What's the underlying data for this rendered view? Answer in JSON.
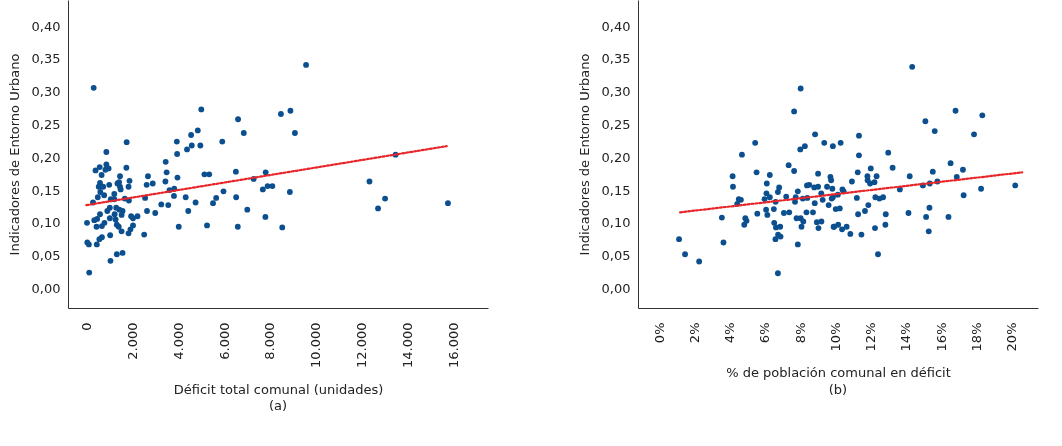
{
  "chart_data": [
    {
      "type": "scatter",
      "xlabel": "Déficit total comunal (unidades)",
      "ylabel": "Indicadores de Entorno Urbano",
      "annotations": [
        "(a)"
      ],
      "xlim": [
        -800,
        17500
      ],
      "ylim": [
        -0.03,
        0.44
      ],
      "xticks": [
        0,
        {
          "value": 2000,
          "label": "2.000"
        },
        {
          "value": 4000,
          "label": "4.000"
        },
        {
          "value": 6000,
          "label": "6.000"
        },
        {
          "value": 8000,
          "label": "8.000"
        },
        {
          "value": 10000,
          "label": "10.000"
        },
        {
          "value": 12000,
          "label": "12.000"
        },
        {
          "value": 14000,
          "label": "14.000"
        },
        {
          "value": 16000,
          "label": "16.000"
        }
      ],
      "yticks": [
        {
          "value": 0,
          "label": "0,00"
        },
        {
          "value": 0.05,
          "label": "0,05"
        },
        {
          "value": 0.1,
          "label": "0,10"
        },
        {
          "value": 0.15,
          "label": "0,15"
        },
        {
          "value": 0.2,
          "label": "0,20"
        },
        {
          "value": 0.25,
          "label": "0,25"
        },
        {
          "value": 0.3,
          "label": "0,30"
        },
        {
          "value": 0.35,
          "label": "0,35"
        },
        {
          "value": 0.4,
          "label": "0,40"
        }
      ],
      "grid": false,
      "series": [
        {
          "type": "scatter",
          "marker": "circle",
          "color": "#0b4f8f",
          "x": [
            319,
            5008,
            1756,
            871,
            3942,
            4564,
            4855,
            5921,
            4386,
            4593,
            4966,
            3955,
            3457,
            3498,
            3970,
            5145,
            5353,
            5975,
            5656,
            5519,
            4759,
            4329,
            3830,
            3623,
            3817,
            3568,
            3264,
            4440,
            4025,
            5257,
            3444,
            2684,
            2891,
            2627,
            2560,
            2643,
            3000,
            2519,
            1743,
            1881,
            1838,
            1853,
            1674,
            1466,
            1425,
            1355,
            1466,
            1494,
            1217,
            996,
            871,
            968,
            830,
            581,
            401,
            664,
            595,
            539,
            733,
            775,
            608,
            498,
            290,
            1065,
            1217,
            1023,
            1300,
            913,
            1438,
            1577,
            1535,
            1231,
            1023,
            595,
            470,
            346,
            29,
            788,
            678,
            443,
            1273,
            1328,
            1411,
            1535,
            1950,
            2033,
            2228,
            2033,
            1922,
            1838,
            1037,
            678,
            567,
            456,
            41,
            110,
            1328,
            1577,
            1051,
            124,
            9573,
            8477,
            8892,
            6610,
            6859,
            9087,
            6515,
            7813,
            7290,
            7689,
            7896,
            8104,
            8867,
            6527,
            7012,
            7801,
            6598,
            8535,
            12336,
            13473,
            13016,
            12710,
            15755
          ],
          "values": [
            0.306,
            0.273,
            0.223,
            0.208,
            0.224,
            0.234,
            0.241,
            0.224,
            0.212,
            0.218,
            0.218,
            0.205,
            0.193,
            0.177,
            0.169,
            0.174,
            0.174,
            0.148,
            0.138,
            0.13,
            0.131,
            0.139,
            0.152,
            0.15,
            0.141,
            0.127,
            0.128,
            0.118,
            0.094,
            0.096,
            0.163,
            0.171,
            0.16,
            0.158,
            0.138,
            0.118,
            0.115,
            0.082,
            0.184,
            0.164,
            0.155,
            0.134,
            0.137,
            0.171,
            0.162,
            0.16,
            0.155,
            0.151,
            0.144,
            0.158,
            0.189,
            0.183,
            0.181,
            0.185,
            0.18,
            0.173,
            0.161,
            0.155,
            0.155,
            0.142,
            0.147,
            0.139,
            0.131,
            0.136,
            0.136,
            0.123,
            0.123,
            0.118,
            0.12,
            0.118,
            0.112,
            0.113,
            0.107,
            0.113,
            0.106,
            0.104,
            0.1,
            0.1,
            0.095,
            0.094,
            0.105,
            0.097,
            0.094,
            0.087,
            0.11,
            0.107,
            0.11,
            0.096,
            0.09,
            0.084,
            0.081,
            0.078,
            0.075,
            0.067,
            0.07,
            0.067,
            0.052,
            0.054,
            0.042,
            0.024,
            0.341,
            0.266,
            0.271,
            0.258,
            0.237,
            0.237,
            0.178,
            0.177,
            0.167,
            0.151,
            0.156,
            0.156,
            0.147,
            0.139,
            0.12,
            0.109,
            0.094,
            0.093,
            0.163,
            0.204,
            0.137,
            0.122,
            0.13
          ]
        },
        {
          "type": "line",
          "color": "#e8262a",
          "line_style": "dotted",
          "x": [
            0,
            15700
          ],
          "values": [
            0.127,
            0.217
          ]
        }
      ]
    },
    {
      "type": "scatter",
      "xlabel": "% de población comunal en déficit",
      "ylabel": "Indicadores de Entorno Urbano",
      "annotations": [
        "(b)"
      ],
      "xlim": [
        -1.2,
        21.5
      ],
      "ylim": [
        -0.03,
        0.44
      ],
      "xticks": [
        {
          "value": 0,
          "label": "0%"
        },
        {
          "value": 2,
          "label": "2%"
        },
        {
          "value": 4,
          "label": "4%"
        },
        {
          "value": 6,
          "label": "6%"
        },
        {
          "value": 8,
          "label": "8%"
        },
        {
          "value": 10,
          "label": "10%"
        },
        {
          "value": 12,
          "label": "12%"
        },
        {
          "value": 14,
          "label": "14%"
        },
        {
          "value": 16,
          "label": "16%"
        },
        {
          "value": 18,
          "label": "18%"
        },
        {
          "value": 20,
          "label": "20%"
        }
      ],
      "yticks": [
        {
          "value": 0,
          "label": "0,00"
        },
        {
          "value": 0.05,
          "label": "0,05"
        },
        {
          "value": 0.1,
          "label": "0,10"
        },
        {
          "value": 0.15,
          "label": "0,15"
        },
        {
          "value": 0.2,
          "label": "0,20"
        },
        {
          "value": 0.25,
          "label": "0,25"
        },
        {
          "value": 0.3,
          "label": "0,30"
        },
        {
          "value": 0.35,
          "label": "0,35"
        },
        {
          "value": 0.4,
          "label": "0,40"
        }
      ],
      "grid": false,
      "series": [
        {
          "type": "scatter",
          "marker": "circle",
          "color": "#0b4f8f",
          "x": [
            8.03,
            7.66,
            8.85,
            9.37,
            9.86,
            8.27,
            8.01,
            5.45,
            4.7,
            7.35,
            7.66,
            5.53,
            4.17,
            4.19,
            6.28,
            6.11,
            6.81,
            6.74,
            9.02,
            9.72,
            9.76,
            8.39,
            8.52,
            8.8,
            9.02,
            9.53,
            7.87,
            6.09,
            6.28,
            5.98,
            7.21,
            7.75,
            8.15,
            8.41,
            9.2,
            9.28,
            9.79,
            4.52,
            4.64,
            4.43,
            6.61,
            7.71,
            8.83,
            9.62,
            3.56,
            5.57,
            6.07,
            6.14,
            6.51,
            7.08,
            7.38,
            7.8,
            8.03,
            8.18,
            8.36,
            8.73,
            8.95,
            9.21,
            4.89,
            4.96,
            4.83,
            6.53,
            6.63,
            6.87,
            8.08,
            9.04,
            9.9,
            6.6,
            6.75,
            6.89,
            7.87,
            3.65,
            1.13,
            1.47,
            2.27,
            6.74,
            14.36,
            16.82,
            18.34,
            15.11,
            17.87,
            15.64,
            11.34,
            10.3,
            11.34,
            13.0,
            13.25,
            12.01,
            11.27,
            11.82,
            12.34,
            11.83,
            12.22,
            11.97,
            10.94,
            9.83,
            10.4,
            10.47,
            10.14,
            9.86,
            11.22,
            12.27,
            12.5,
            12.71,
            11.87,
            10.02,
            10.25,
            11.68,
            11.29,
            12.86,
            12.25,
            12.84,
            9.93,
            10.16,
            10.38,
            10.64,
            10.85,
            11.48,
            12.42,
            13.66,
            14.22,
            14.15,
            14.97,
            15.36,
            15.53,
            15.34,
            15.15,
            15.3,
            15.79,
            16.54,
            17.24,
            16.89,
            17.28,
            16.42,
            18.27,
            20.21
          ],
          "values": [
            0.305,
            0.27,
            0.235,
            0.222,
            0.217,
            0.217,
            0.212,
            0.222,
            0.204,
            0.188,
            0.179,
            0.177,
            0.171,
            0.155,
            0.173,
            0.16,
            0.154,
            0.147,
            0.175,
            0.17,
            0.165,
            0.157,
            0.158,
            0.154,
            0.155,
            0.155,
            0.148,
            0.145,
            0.139,
            0.136,
            0.14,
            0.139,
            0.137,
            0.138,
            0.145,
            0.135,
            0.137,
            0.136,
            0.135,
            0.129,
            0.132,
            0.132,
            0.13,
            0.127,
            0.108,
            0.114,
            0.12,
            0.112,
            0.121,
            0.115,
            0.116,
            0.107,
            0.107,
            0.102,
            0.116,
            0.116,
            0.101,
            0.102,
            0.107,
            0.103,
            0.097,
            0.1,
            0.093,
            0.094,
            0.094,
            0.092,
            0.094,
            0.075,
            0.082,
            0.079,
            0.067,
            0.07,
            0.075,
            0.052,
            0.041,
            0.023,
            0.338,
            0.271,
            0.264,
            0.255,
            0.235,
            0.24,
            0.233,
            0.222,
            0.203,
            0.207,
            0.184,
            0.183,
            0.177,
            0.171,
            0.171,
            0.165,
            0.162,
            0.16,
            0.163,
            0.152,
            0.151,
            0.148,
            0.143,
            0.139,
            0.138,
            0.139,
            0.137,
            0.139,
            0.127,
            0.121,
            0.122,
            0.118,
            0.113,
            0.113,
            0.092,
            0.097,
            0.094,
            0.097,
            0.09,
            0.094,
            0.083,
            0.082,
            0.052,
            0.151,
            0.171,
            0.115,
            0.157,
            0.16,
            0.178,
            0.123,
            0.109,
            0.087,
            0.163,
            0.191,
            0.181,
            0.17,
            0.142,
            0.109,
            0.152,
            0.157
          ]
        },
        {
          "type": "line",
          "color": "#e8262a",
          "line_style": "dotted",
          "x": [
            1.19,
            20.6
          ],
          "values": [
            0.116,
            0.177
          ]
        }
      ]
    }
  ]
}
